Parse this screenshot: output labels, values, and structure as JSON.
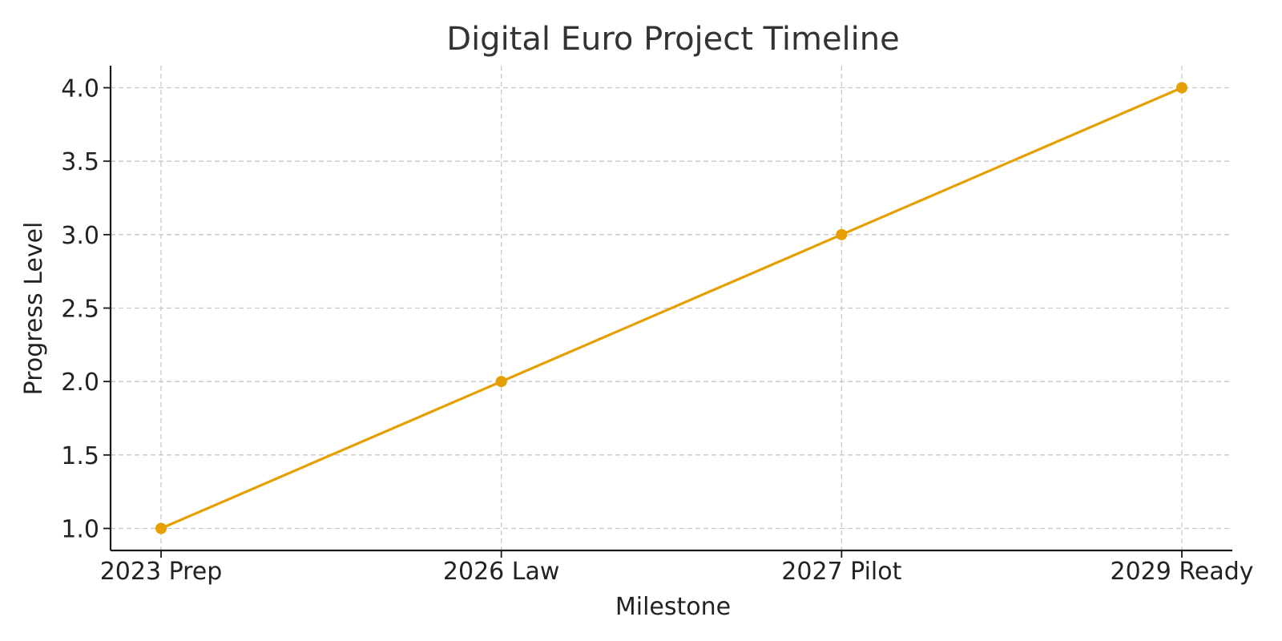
{
  "chart_data": {
    "type": "line",
    "title": "Digital Euro Project Timeline",
    "xlabel": "Milestone",
    "ylabel": "Progress Level",
    "categories": [
      "2023 Prep",
      "2026 Law",
      "2027 Pilot",
      "2029 Ready"
    ],
    "series": [
      {
        "values": [
          1.0,
          2.0,
          3.0,
          4.0
        ],
        "color": "#E69F00",
        "marker": "circle"
      }
    ],
    "ylim": [
      0.85,
      4.15
    ],
    "yticks": [
      "1.0",
      "1.5",
      "2.0",
      "2.5",
      "3.0",
      "3.5",
      "4.0"
    ],
    "grid": true,
    "grid_style": "dashed",
    "legend": "none"
  }
}
